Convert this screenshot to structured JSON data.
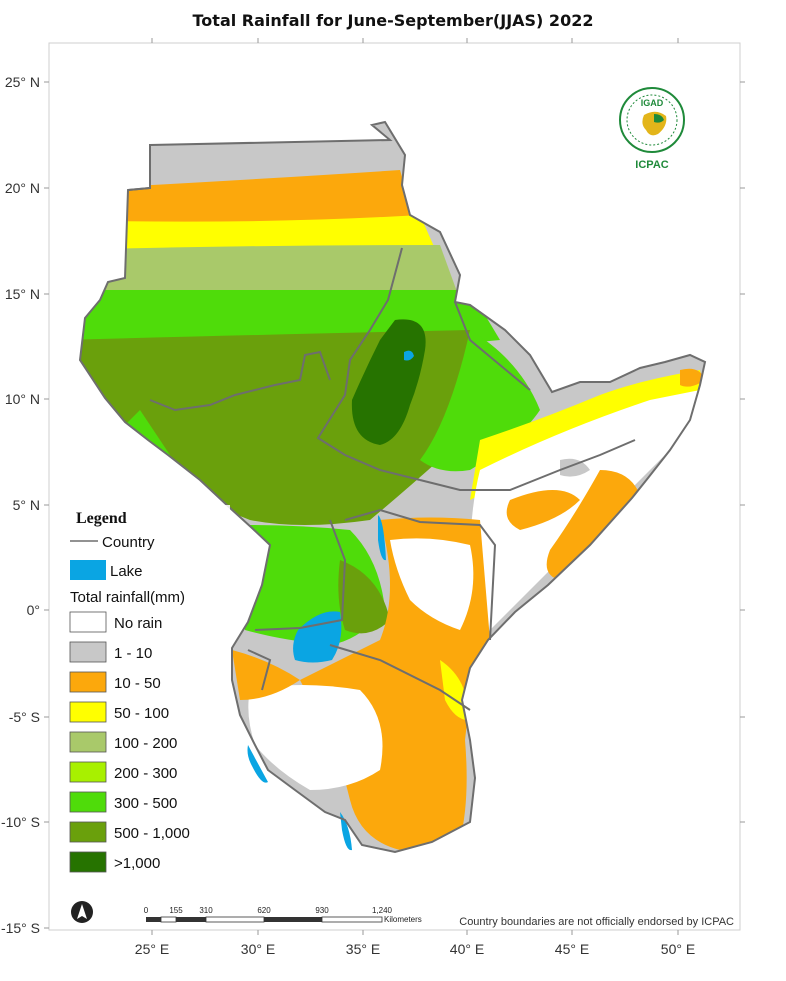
{
  "title": "Total  Rainfall for June-September(JJAS)  2022",
  "axes": {
    "lat_labels": [
      "25° N",
      "20° N",
      "15° N",
      "10° N",
      "5° N",
      "0°",
      "-5° S",
      "-10° S",
      "-15° S"
    ],
    "lon_labels": [
      "25° E",
      "30° E",
      "35° E",
      "40° E",
      "45° E",
      "50° E"
    ]
  },
  "legend": {
    "heading": "Legend",
    "country_label": "Country",
    "lake_label": "Lake",
    "rainfall_heading": "Total rainfall(mm)",
    "classes": [
      {
        "label": "No rain",
        "color": "#ffffff"
      },
      {
        "label": "1 - 10",
        "color": "#c8c8c8"
      },
      {
        "label": "10 - 50",
        "color": "#fca80c"
      },
      {
        "label": "50 - 100",
        "color": "#ffff00"
      },
      {
        "label": "100 - 200",
        "color": "#a9c96a"
      },
      {
        "label": "200 - 300",
        "color": "#a8f000"
      },
      {
        "label": "300 - 500",
        "color": "#4fdc0a"
      },
      {
        "label": "500 - 1,000",
        "color": "#6aa00c"
      },
      {
        "label": ">1,000",
        "color": "#267300"
      }
    ],
    "lake_color": "#0aa5e3",
    "border_color": "#6e6e6e"
  },
  "scale_bar": {
    "ticks": [
      "0",
      "155",
      "310",
      "620",
      "930",
      "1,240"
    ],
    "unit": "Kilometers"
  },
  "disclaimer": "Country boundaries are not officially endorsed by ICPAC",
  "logo": {
    "top_text": "IGAD",
    "bottom_text": "ICPAC"
  },
  "north_arrow": "north-arrow-icon"
}
